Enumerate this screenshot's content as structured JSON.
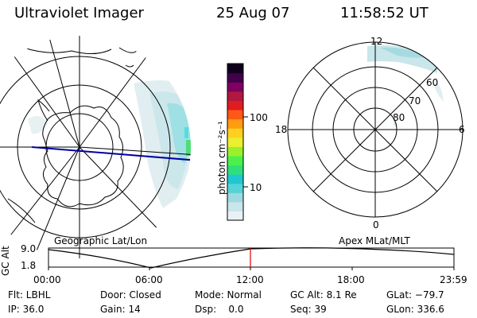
{
  "header": {
    "instrument": "Ultraviolet Imager",
    "date": "25 Aug 07",
    "time": "11:58:52 UT"
  },
  "left_panel": {
    "caption": "Geographic Lat/Lon"
  },
  "right_panel": {
    "caption": "Apex MLat/MLT",
    "mlt_labels": [
      "12",
      "18",
      "6",
      "0"
    ],
    "lat_labels": [
      "60",
      "70",
      "80"
    ]
  },
  "colorbar": {
    "unit_label": "photon cm⁻²s⁻¹",
    "ticks": [
      "100",
      "10"
    ],
    "colors": [
      "#e8f2f4",
      "#c9e6ea",
      "#9ed9df",
      "#55d3d6",
      "#1fc7d0",
      "#2fe07a",
      "#4cf04c",
      "#9af02a",
      "#e8f030",
      "#ffd020",
      "#ff9c10",
      "#ff5818",
      "#e01c20",
      "#b01840",
      "#800060",
      "#40004c",
      "#10001c"
    ]
  },
  "altitude_strip": {
    "ylabel": "GC Alt",
    "ymax_label": "9.0",
    "ymin_label": "1.8",
    "time_ticks": [
      "00:00",
      "06:00",
      "12:00",
      "18:00",
      "23:59"
    ]
  },
  "info": {
    "row1": [
      "Flt: LBHL",
      "Door: Closed",
      "Mode: Normal",
      "GC Alt: 8.1 Re",
      "GLat: −79.7"
    ],
    "row2": [
      "IP: 36.0",
      "Gain: 14",
      "Dsp:    0.0",
      "Seq: 39",
      "GLon: 336.6"
    ]
  }
}
